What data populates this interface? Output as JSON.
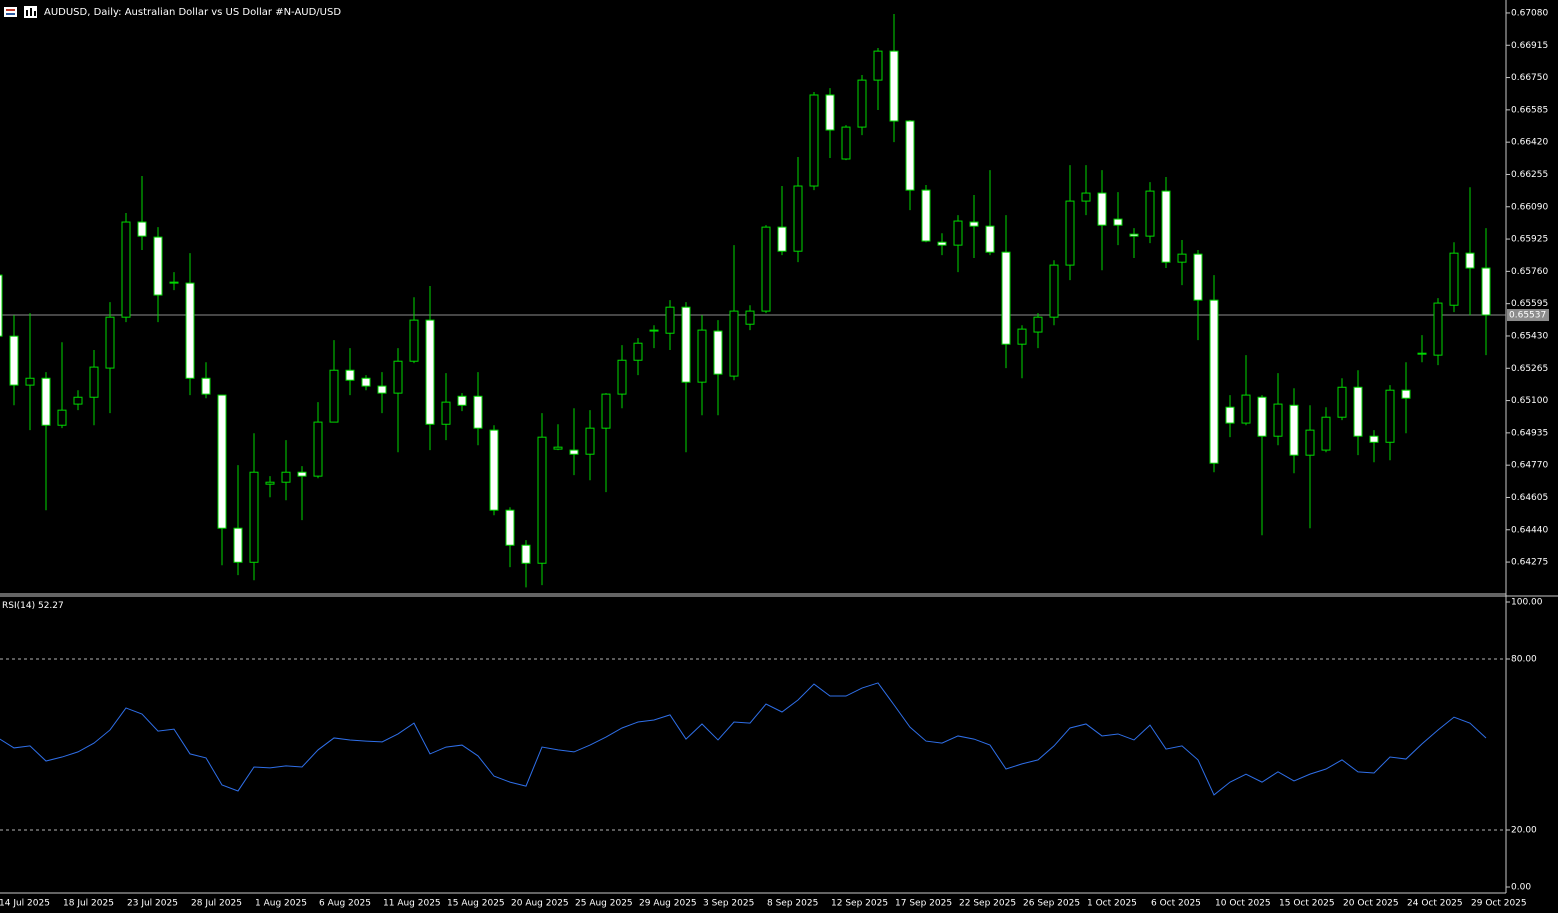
{
  "chart_data": [
    {
      "type": "candlestick",
      "title": "AUDUSD, Daily:  Australian Dollar vs US Dollar #N-AUD/USD",
      "categories": [
        "14 Jul 2025",
        null,
        null,
        null,
        "18 Jul 2025",
        null,
        null,
        null,
        "23 Jul 2025",
        null,
        null,
        null,
        "28 Jul 2025",
        null,
        null,
        null,
        "1 Aug 2025",
        null,
        null,
        null,
        "6 Aug 2025",
        null,
        null,
        null,
        "11 Aug 2025",
        null,
        null,
        null,
        "15 Aug 2025",
        null,
        null,
        null,
        "20 Aug 2025",
        null,
        null,
        null,
        "25 Aug 2025",
        null,
        null,
        null,
        "29 Aug 2025",
        null,
        null,
        null,
        "3 Sep 2025",
        null,
        null,
        null,
        "8 Sep 2025",
        null,
        null,
        null,
        "12 Sep 2025",
        null,
        null,
        null,
        "17 Sep 2025",
        null,
        null,
        null,
        "22 Sep 2025",
        null,
        null,
        null,
        "26 Sep 2025",
        null,
        null,
        null,
        "1 Oct 2025",
        null,
        null,
        null,
        "6 Oct 2025",
        null,
        null,
        null,
        "10 Oct 2025",
        null,
        null,
        null,
        "15 Oct 2025",
        null,
        null,
        null,
        "20 Oct 2025",
        null,
        null,
        null,
        "24 Oct 2025",
        null,
        null,
        null,
        "29 Oct 2025",
        null
      ],
      "open": [
        0.65741,
        0.65429,
        0.65179,
        0.65214,
        0.64974,
        0.65082,
        0.65117,
        0.65266,
        0.65526,
        0.66012,
        0.65935,
        0.65705,
        0.657,
        0.65214,
        0.65128,
        0.64448,
        0.64274,
        0.64673,
        0.64683,
        0.64734,
        0.64714,
        0.6499,
        0.65255,
        0.65214,
        0.65174,
        0.65138,
        0.65301,
        0.65511,
        0.64979,
        0.65122,
        0.65122,
        0.64949,
        0.6454,
        0.64361,
        0.64269,
        0.64852,
        0.64847,
        0.64826,
        0.64959,
        0.65133,
        0.65306,
        0.65455,
        0.65444,
        0.65577,
        0.65194,
        0.65455,
        0.65225,
        0.6549,
        0.65557,
        0.65986,
        0.65863,
        0.66196,
        0.66661,
        0.66334,
        0.66497,
        0.66737,
        0.66885,
        0.66528,
        0.66175,
        0.65909,
        0.65894,
        0.66012,
        0.65991,
        0.65858,
        0.65388,
        0.6545,
        0.65526,
        0.65792,
        0.66119,
        0.6616,
        0.66027,
        0.6595,
        0.6594,
        0.6617,
        0.65807,
        0.65848,
        0.65613,
        0.65066,
        0.64985,
        0.65117,
        0.64918,
        0.65076,
        0.64821,
        0.64847,
        0.65015,
        0.65168,
        0.64918,
        0.64887,
        0.65153,
        0.65342,
        0.65332,
        0.65587,
        0.65853,
        0.65777
      ],
      "high": [
        0.65766,
        0.65536,
        0.65547,
        0.65245,
        0.65398,
        0.65153,
        0.65358,
        0.65603,
        0.66058,
        0.66247,
        0.65986,
        0.65756,
        0.65853,
        0.65296,
        0.65128,
        0.6477,
        0.64933,
        0.64714,
        0.64898,
        0.64765,
        0.65092,
        0.65409,
        0.65368,
        0.6523,
        0.65245,
        0.65368,
        0.65628,
        0.65685,
        0.6524,
        0.65138,
        0.65245,
        0.64974,
        0.64555,
        0.64387,
        0.65036,
        0.64979,
        0.65061,
        0.65051,
        0.65138,
        0.65383,
        0.65419,
        0.65485,
        0.65613,
        0.65603,
        0.65536,
        0.65511,
        0.65894,
        0.65587,
        0.65996,
        0.66196,
        0.66344,
        0.66676,
        0.66696,
        0.66507,
        0.66763,
        0.66901,
        0.67075,
        0.66533,
        0.66201,
        0.65955,
        0.66047,
        0.6615,
        0.66277,
        0.66047,
        0.65485,
        0.65547,
        0.65817,
        0.66303,
        0.66303,
        0.66277,
        0.66165,
        0.65981,
        0.66216,
        0.66242,
        0.6592,
        0.65869,
        0.65741,
        0.65128,
        0.65332,
        0.65128,
        0.6524,
        0.65163,
        0.65076,
        0.65066,
        0.65214,
        0.65255,
        0.64949,
        0.65179,
        0.65296,
        0.65434,
        0.65623,
        0.65909,
        0.6619,
        0.65981
      ],
      "low": [
        0.65383,
        0.65076,
        0.64949,
        0.6454,
        0.64959,
        0.65051,
        0.64974,
        0.65036,
        0.65501,
        0.65869,
        0.65501,
        0.65664,
        0.65128,
        0.65112,
        0.64259,
        0.64208,
        0.64182,
        0.64606,
        0.64591,
        0.64489,
        0.64703,
        0.6499,
        0.65128,
        0.65153,
        0.65036,
        0.64836,
        0.65291,
        0.64847,
        0.64898,
        0.65046,
        0.64872,
        0.64514,
        0.64249,
        0.64146,
        0.64157,
        0.64847,
        0.64719,
        0.64693,
        0.64632,
        0.65061,
        0.6523,
        0.65368,
        0.65358,
        0.64836,
        0.65025,
        0.65025,
        0.65204,
        0.6546,
        0.65547,
        0.65843,
        0.65807,
        0.66175,
        0.66339,
        0.66328,
        0.66456,
        0.66584,
        0.6642,
        0.66073,
        0.65909,
        0.65843,
        0.65756,
        0.65828,
        0.65843,
        0.65266,
        0.65214,
        0.65368,
        0.65485,
        0.65715,
        0.66047,
        0.65766,
        0.65894,
        0.65828,
        0.65904,
        0.65777,
        0.6569,
        0.65409,
        0.64734,
        0.64913,
        0.64974,
        0.64412,
        0.64872,
        0.64729,
        0.64448,
        0.64836,
        0.65,
        0.64821,
        0.64785,
        0.64795,
        0.64933,
        0.65296,
        0.65281,
        0.65552,
        0.65536,
        0.65332
      ],
      "close": [
        0.65429,
        0.65179,
        0.65214,
        0.64974,
        0.65051,
        0.65117,
        0.65271,
        0.65526,
        0.66012,
        0.6594,
        0.65639,
        0.657,
        0.65214,
        0.65133,
        0.64448,
        0.64274,
        0.64734,
        0.64683,
        0.64734,
        0.64714,
        0.6499,
        0.65255,
        0.65204,
        0.65174,
        0.65138,
        0.65301,
        0.65511,
        0.64979,
        0.65092,
        0.65076,
        0.64959,
        0.6454,
        0.64361,
        0.64269,
        0.64913,
        0.64862,
        0.64826,
        0.64959,
        0.65133,
        0.65306,
        0.65393,
        0.6546,
        0.65577,
        0.65194,
        0.6546,
        0.65235,
        0.65557,
        0.65557,
        0.65986,
        0.65863,
        0.66196,
        0.66661,
        0.66482,
        0.66497,
        0.66737,
        0.66885,
        0.66528,
        0.66175,
        0.65915,
        0.65894,
        0.66017,
        0.65991,
        0.65858,
        0.65388,
        0.65465,
        0.65526,
        0.65792,
        0.66119,
        0.6616,
        0.65996,
        0.65996,
        0.6594,
        0.6617,
        0.65807,
        0.65848,
        0.65613,
        0.6478,
        0.64985,
        0.65128,
        0.64918,
        0.65082,
        0.64821,
        0.64949,
        0.65015,
        0.65168,
        0.64918,
        0.64887,
        0.65153,
        0.65112,
        0.65342,
        0.65598,
        0.65853,
        0.65777,
        0.65537
      ],
      "current_price": 0.65537,
      "ylim": [
        0.64117,
        0.67136
      ],
      "yticks": [
        {
          "value": 0.6708,
          "label": "0.67080"
        },
        0.66915,
        {
          "value": 0.6675,
          "label": "0.66750"
        },
        0.66585,
        {
          "value": 0.6642,
          "label": "0.66420"
        },
        0.66255,
        {
          "value": 0.6609,
          "label": "0.66090"
        },
        0.65925,
        {
          "value": 0.6576,
          "label": "0.65760"
        },
        0.65595,
        {
          "value": 0.6543,
          "label": "0.65430"
        },
        0.65265,
        {
          "value": 0.651,
          "label": "0.65100"
        },
        0.64935,
        {
          "value": 0.6477,
          "label": "0.64770"
        },
        0.64605,
        {
          "value": 0.6444,
          "label": "0.64440"
        },
        0.64275
      ],
      "wick_color": "#00d800",
      "bull_fill": "#000000",
      "bear_fill": "#ffffff"
    },
    {
      "type": "line",
      "series": [
        {
          "name": "RSI(14)",
          "color": "#2f6fe8",
          "values": [
            52.3,
            48.8,
            49.5,
            44.2,
            45.6,
            47.4,
            50.5,
            55.1,
            62.8,
            60.7,
            54.7,
            55.4,
            46.7,
            45.3,
            35.8,
            33.7,
            42.1,
            41.8,
            42.5,
            42.1,
            48.1,
            52.3,
            51.6,
            51.2,
            50.9,
            53.7,
            57.5,
            46.7,
            49.1,
            49.8,
            46.0,
            38.9,
            36.8,
            35.4,
            49.1,
            48.1,
            47.4,
            49.8,
            52.6,
            55.8,
            57.9,
            58.6,
            60.4,
            51.9,
            57.2,
            51.6,
            57.9,
            57.5,
            64.2,
            61.4,
            65.6,
            71.2,
            67.0,
            67.0,
            69.8,
            71.6,
            63.9,
            56.1,
            51.2,
            50.5,
            53.0,
            51.9,
            49.8,
            41.4,
            43.2,
            44.6,
            49.5,
            55.8,
            57.2,
            53.0,
            53.7,
            51.6,
            56.8,
            48.4,
            49.5,
            44.6,
            32.3,
            36.8,
            39.6,
            36.8,
            40.4,
            37.2,
            39.6,
            41.4,
            44.6,
            40.4,
            40.0,
            45.6,
            44.9,
            50.2,
            55.1,
            59.6,
            57.5,
            52.27
          ]
        }
      ],
      "ylim": [
        -2.1,
        101.75
      ],
      "yticks": [
        {
          "value": 100,
          "label": "100.00"
        },
        {
          "value": 80,
          "label": "80.00"
        },
        {
          "value": 20,
          "label": "20.00"
        },
        {
          "value": 0,
          "label": "0.00"
        }
      ]
    }
  ]
}
